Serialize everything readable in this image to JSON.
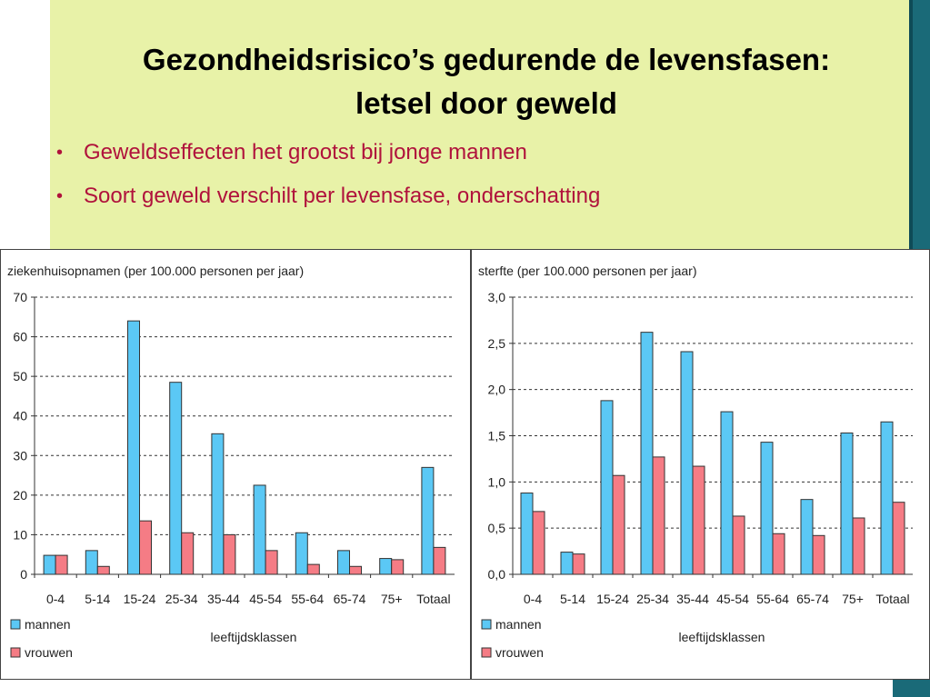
{
  "slide": {
    "title_line1": "Gezondheidsrisico’s gedurende de levensfasen:",
    "title_line2": "letsel door geweld",
    "bullets": [
      "Geweldseffecten het grootst bij jonge mannen",
      "Soort geweld verschilt per levensfase, onderschatting"
    ],
    "bullet_marker": "•"
  },
  "colors": {
    "panel": "#e8f2a8",
    "accent": "#1a6a78",
    "bullet_text": "#b0123c",
    "mannen": "#5bc8f5",
    "vrouwen": "#f57c85"
  },
  "chart_data": [
    {
      "type": "bar",
      "title": "ziekenhuisopnamen (per 100.000 personen per jaar)",
      "xlabel": "leeftijdsklassen",
      "ylabel": "",
      "categories": [
        "0-4",
        "5-14",
        "15-24",
        "25-34",
        "35-44",
        "45-54",
        "55-64",
        "65-74",
        "75+",
        "Totaal"
      ],
      "ylim": [
        0,
        70
      ],
      "yticks": [
        "0",
        "10",
        "20",
        "30",
        "40",
        "50",
        "60",
        "70"
      ],
      "ytick_values": [
        0,
        10,
        20,
        30,
        40,
        50,
        60,
        70
      ],
      "grid": "dashed horizontal",
      "legend": "bottom-left",
      "series": [
        {
          "name": "mannen",
          "values": [
            4.8,
            6.0,
            64.0,
            48.5,
            35.5,
            22.5,
            10.5,
            6.0,
            4.0,
            27.0
          ]
        },
        {
          "name": "vrouwen",
          "values": [
            4.8,
            2.0,
            13.5,
            10.5,
            10.0,
            6.0,
            2.5,
            2.0,
            3.7,
            6.8
          ]
        }
      ]
    },
    {
      "type": "bar",
      "title": "sterfte (per 100.000 personen per jaar)",
      "xlabel": "leeftijdsklassen",
      "ylabel": "",
      "categories": [
        "0-4",
        "5-14",
        "15-24",
        "25-34",
        "35-44",
        "45-54",
        "55-64",
        "65-74",
        "75+",
        "Totaal"
      ],
      "ylim": [
        0,
        3.0
      ],
      "yticks": [
        "0,0",
        "0,5",
        "1,0",
        "1,5",
        "2,0",
        "2,5",
        "3,0"
      ],
      "ytick_values": [
        0,
        0.5,
        1.0,
        1.5,
        2.0,
        2.5,
        3.0
      ],
      "grid": "dashed horizontal",
      "legend": "bottom-left",
      "series": [
        {
          "name": "mannen",
          "values": [
            0.88,
            0.24,
            1.88,
            2.62,
            2.41,
            1.76,
            1.43,
            0.81,
            1.53,
            1.65
          ]
        },
        {
          "name": "vrouwen",
          "values": [
            0.68,
            0.22,
            1.07,
            1.27,
            1.17,
            0.63,
            0.44,
            0.42,
            0.61,
            0.78
          ]
        }
      ]
    }
  ]
}
